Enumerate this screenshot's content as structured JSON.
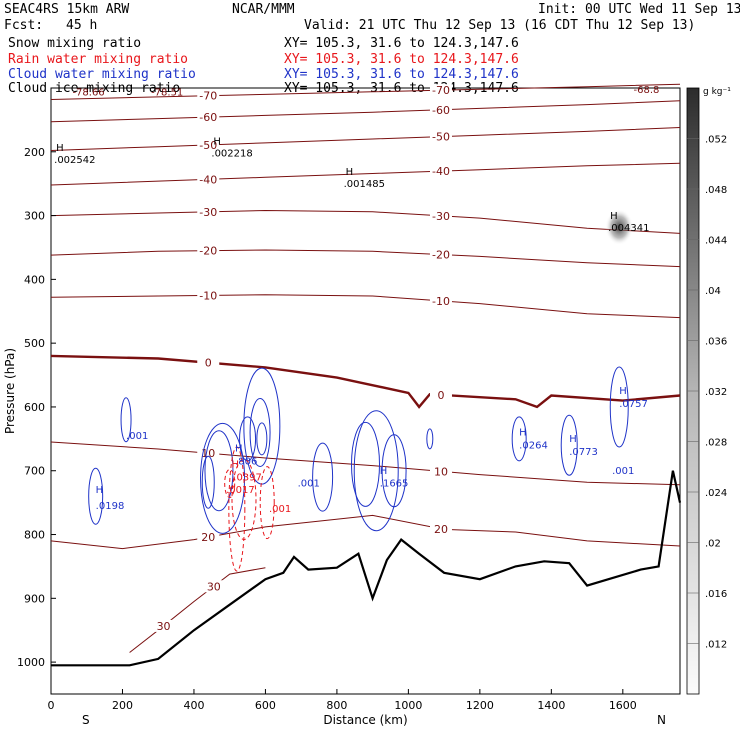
{
  "header": {
    "model": "SEAC4RS 15km ARW",
    "org": "NCAR/MMM",
    "init": "Init: 00 UTC Wed 11 Sep 13",
    "fcst_label": "Fcst:",
    "fcst_value": "45 h",
    "valid": "Valid: 21 UTC Thu 12 Sep 13 (16 CDT Thu 12 Sep 13)",
    "fields": [
      {
        "name": "Snow mixing ratio",
        "xy": "XY= 105.3, 31.6 to 124.3,147.6",
        "color": "#000000"
      },
      {
        "name": "Rain water mixing ratio",
        "xy": "XY= 105.3, 31.6 to 124.3,147.6",
        "color": "#e8161b"
      },
      {
        "name": "Cloud water mixing ratio",
        "xy": "XY= 105.3, 31.6 to 124.3,147.6",
        "color": "#1f33c8"
      },
      {
        "name": "Cloud ice mixing ratio",
        "xy": "XY= 105.3, 31.6 to 124.3,147.6",
        "color": "#000000"
      }
    ]
  },
  "chart_data": {
    "type": "contour-cross-section",
    "xlabel": "Distance (km)",
    "ylabel": "Pressure (hPa)",
    "xlim": [
      0,
      1760
    ],
    "ylim": [
      1050,
      100
    ],
    "x_ticks": [
      "0",
      "200",
      "400",
      "600",
      "800",
      "1000",
      "1200",
      "1400",
      "1600"
    ],
    "y_ticks": [
      "200",
      "300",
      "400",
      "500",
      "600",
      "700",
      "800",
      "900",
      "1000"
    ],
    "endpoint_left": "S",
    "endpoint_right": "N",
    "colorbar": {
      "unit": "g kg⁻¹",
      "ticks": [
        ".052",
        ".048",
        ".044",
        ".04",
        ".036",
        ".032",
        ".028",
        ".024",
        ".02",
        ".016",
        ".012"
      ],
      "min": 0.008,
      "max": 0.056
    },
    "temperature_isotherms": [
      {
        "label": "-70",
        "points": [
          [
            0,
            118
          ],
          [
            300,
            114
          ],
          [
            600,
            110
          ],
          [
            900,
            106
          ],
          [
            1200,
            102
          ],
          [
            1500,
            98
          ],
          [
            1760,
            94
          ]
        ]
      },
      {
        "label": "-60",
        "points": [
          [
            0,
            153
          ],
          [
            300,
            148
          ],
          [
            600,
            143
          ],
          [
            900,
            138
          ],
          [
            1200,
            132
          ],
          [
            1500,
            126
          ],
          [
            1760,
            120
          ]
        ]
      },
      {
        "label": "-50",
        "points": [
          [
            0,
            198
          ],
          [
            300,
            192
          ],
          [
            600,
            186
          ],
          [
            900,
            180
          ],
          [
            1200,
            174
          ],
          [
            1500,
            168
          ],
          [
            1760,
            162
          ]
        ]
      },
      {
        "label": "-40",
        "points": [
          [
            0,
            252
          ],
          [
            300,
            246
          ],
          [
            600,
            240
          ],
          [
            900,
            234
          ],
          [
            1200,
            228
          ],
          [
            1500,
            222
          ],
          [
            1760,
            218
          ]
        ]
      },
      {
        "label": "-30",
        "points": [
          [
            0,
            300
          ],
          [
            300,
            296
          ],
          [
            600,
            292
          ],
          [
            900,
            294
          ],
          [
            1200,
            304
          ],
          [
            1500,
            320
          ],
          [
            1760,
            328
          ]
        ]
      },
      {
        "label": "-20",
        "points": [
          [
            0,
            362
          ],
          [
            300,
            356
          ],
          [
            600,
            354
          ],
          [
            900,
            356
          ],
          [
            1200,
            364
          ],
          [
            1500,
            374
          ],
          [
            1760,
            380
          ]
        ]
      },
      {
        "label": "-10",
        "points": [
          [
            0,
            428
          ],
          [
            300,
            426
          ],
          [
            600,
            424
          ],
          [
            900,
            426
          ],
          [
            1200,
            438
          ],
          [
            1500,
            454
          ],
          [
            1760,
            460
          ]
        ]
      },
      {
        "label": "0",
        "points": [
          [
            0,
            520
          ],
          [
            300,
            524
          ],
          [
            600,
            538
          ],
          [
            800,
            554
          ],
          [
            1000,
            578
          ],
          [
            1030,
            600
          ],
          [
            1060,
            580
          ],
          [
            1300,
            588
          ],
          [
            1360,
            600
          ],
          [
            1400,
            582
          ],
          [
            1600,
            590
          ],
          [
            1760,
            582
          ]
        ]
      },
      {
        "label": "10",
        "points": [
          [
            0,
            655
          ],
          [
            300,
            666
          ],
          [
            600,
            680
          ],
          [
            900,
            692
          ],
          [
            1200,
            706
          ],
          [
            1500,
            718
          ],
          [
            1760,
            722
          ]
        ]
      },
      {
        "label": "20",
        "points": [
          [
            0,
            810
          ],
          [
            200,
            822
          ],
          [
            400,
            808
          ],
          [
            600,
            788
          ],
          [
            900,
            770
          ],
          [
            1100,
            792
          ],
          [
            1300,
            796
          ],
          [
            1500,
            810
          ],
          [
            1760,
            818
          ]
        ]
      },
      {
        "label": "30",
        "points": [
          [
            220,
            985
          ],
          [
            300,
            950
          ],
          [
            400,
            905
          ],
          [
            500,
            862
          ],
          [
            600,
            852
          ]
        ]
      }
    ],
    "terrain_pressure": [
      [
        0,
        1005
      ],
      [
        220,
        1005
      ],
      [
        300,
        995
      ],
      [
        400,
        950
      ],
      [
        500,
        910
      ],
      [
        600,
        870
      ],
      [
        650,
        860
      ],
      [
        680,
        835
      ],
      [
        720,
        855
      ],
      [
        800,
        852
      ],
      [
        860,
        830
      ],
      [
        900,
        900
      ],
      [
        940,
        840
      ],
      [
        980,
        808
      ],
      [
        1030,
        830
      ],
      [
        1100,
        860
      ],
      [
        1200,
        870
      ],
      [
        1300,
        850
      ],
      [
        1380,
        842
      ],
      [
        1450,
        845
      ],
      [
        1500,
        880
      ],
      [
        1560,
        870
      ],
      [
        1650,
        855
      ],
      [
        1700,
        850
      ],
      [
        1740,
        700
      ],
      [
        1760,
        750
      ]
    ],
    "highs": [
      {
        "label": "H",
        "value": ".002542",
        "x": 20,
        "p": 205
      },
      {
        "label": "H",
        "value": ".002218",
        "x": 460,
        "p": 195
      },
      {
        "label": "H",
        "value": ".001485",
        "x": 830,
        "p": 243
      },
      {
        "label": "H",
        "value": ".004341",
        "x": 1570,
        "p": 312
      }
    ],
    "cloud_water_labels": [
      {
        "value": ".001",
        "x": 210,
        "p": 650
      },
      {
        "value": "H",
        "x": 125,
        "p": 735
      },
      {
        "value": ".0198",
        "x": 125,
        "p": 760
      },
      {
        "value": "H",
        "x": 515,
        "p": 670
      },
      {
        "value": ".806",
        "x": 515,
        "p": 690
      },
      {
        "value": ".001",
        "x": 690,
        "p": 725
      },
      {
        "value": "H",
        "x": 920,
        "p": 705
      },
      {
        "value": ".1665",
        "x": 920,
        "p": 725
      },
      {
        "value": "H",
        "x": 1310,
        "p": 645
      },
      {
        "value": ".0264",
        "x": 1310,
        "p": 665
      },
      {
        "value": "H",
        "x": 1450,
        "p": 655
      },
      {
        "value": ".0773",
        "x": 1450,
        "p": 675
      },
      {
        "value": "H",
        "x": 1590,
        "p": 580
      },
      {
        "value": ".0757",
        "x": 1590,
        "p": 600
      },
      {
        "value": ".001",
        "x": 1570,
        "p": 705
      }
    ],
    "rain_labels": [
      {
        "value": "H",
        "x": 505,
        "p": 695
      },
      {
        "value": ".0397",
        "x": 510,
        "p": 715
      },
      {
        "value": ".0017",
        "x": 490,
        "p": 735
      },
      {
        "value": ".001",
        "x": 610,
        "p": 765
      }
    ],
    "top_labels": [
      {
        "value": "-78.66",
        "x": 60,
        "p": 112
      },
      {
        "value": "-78.51",
        "x": 280,
        "p": 112
      },
      {
        "value": "-68.8",
        "x": 1630,
        "p": 108
      }
    ]
  }
}
